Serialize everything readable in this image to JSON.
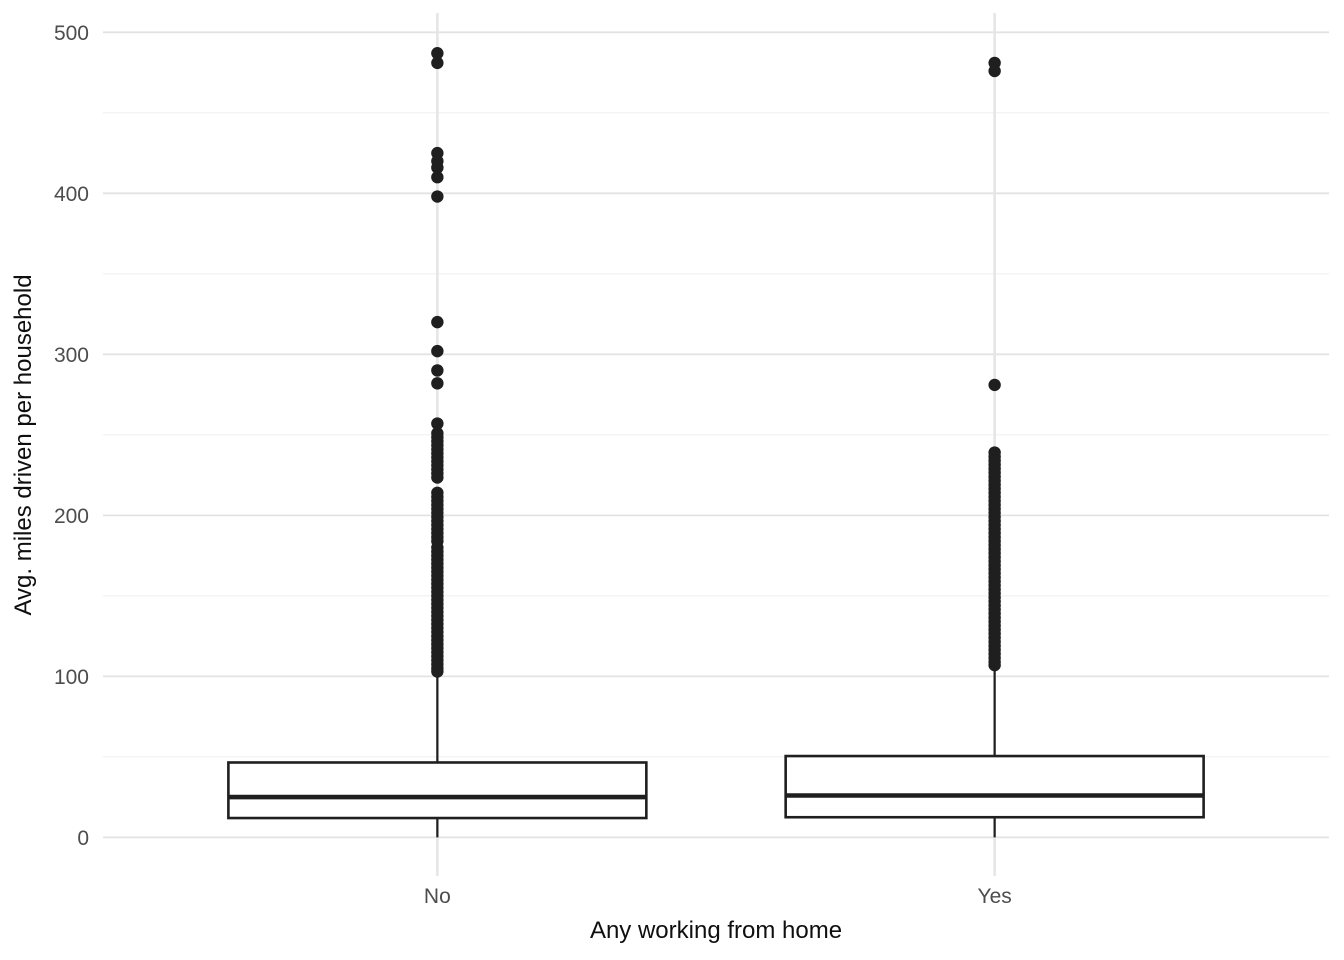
{
  "chart_data": {
    "type": "boxplot",
    "xlabel": "Any working from home",
    "ylabel": "Avg. miles driven per household",
    "categories": [
      "No",
      "Yes"
    ],
    "y_ticks": [
      0,
      100,
      200,
      300,
      400,
      500
    ],
    "y_minor_ticks": [
      50,
      150,
      250,
      350,
      450
    ],
    "ylim": [
      -24,
      512
    ],
    "grid": true,
    "legend": "none",
    "series": [
      {
        "name": "No",
        "whisker_low": 0,
        "q1": 12,
        "median": 25,
        "q3": 46.5,
        "whisker_high": 103,
        "outliers": [
          487,
          481,
          425,
          420,
          416,
          410,
          398,
          320,
          302,
          290,
          282,
          257,
          251,
          248.5,
          246,
          243.5,
          241,
          238.5,
          236,
          233.5,
          231,
          228.5,
          226,
          223.5,
          214,
          211.5,
          209,
          206.5,
          204,
          201.5,
          199,
          196.5,
          194,
          191.5,
          189,
          186.5,
          184,
          180,
          177.5,
          175,
          172.5,
          170,
          167.5,
          165,
          162.5,
          160,
          157.5,
          155,
          152.5,
          150,
          147.5,
          145,
          142.5,
          140,
          137.5,
          135,
          132.5,
          130,
          127.5,
          125,
          122.5,
          120,
          117.5,
          115,
          112.5,
          110,
          107.5,
          105,
          103
        ]
      },
      {
        "name": "Yes",
        "whisker_low": 0,
        "q1": 12.5,
        "median": 26,
        "q3": 50.5,
        "whisker_high": 106,
        "outliers": [
          481,
          476,
          281,
          239,
          236.5,
          234,
          231.5,
          229,
          226.5,
          224,
          221.5,
          219,
          216.5,
          214,
          211.5,
          209,
          206.5,
          204,
          201.5,
          199,
          196.5,
          194,
          191.5,
          189,
          186.5,
          184,
          181.5,
          179,
          176.5,
          174,
          171.5,
          169,
          166.5,
          164,
          161.5,
          159,
          156.5,
          154,
          151.5,
          149,
          146.5,
          144,
          141.5,
          139,
          136.5,
          134,
          131.5,
          129,
          126.5,
          124,
          121.5,
          119,
          116.5,
          114,
          111.5,
          109,
          107
        ]
      }
    ],
    "colors": {
      "background": "#ffffff",
      "grid_major": "#e3e3e3",
      "grid_minor": "#f0f0f0",
      "grid_vertical": "#e6e6e6",
      "box_stroke": "#1f1f1f",
      "box_fill": "#ffffff",
      "point": "#1f1f1f",
      "tick_text": "#4d4d4d",
      "title_text": "#0f0f0f"
    }
  }
}
